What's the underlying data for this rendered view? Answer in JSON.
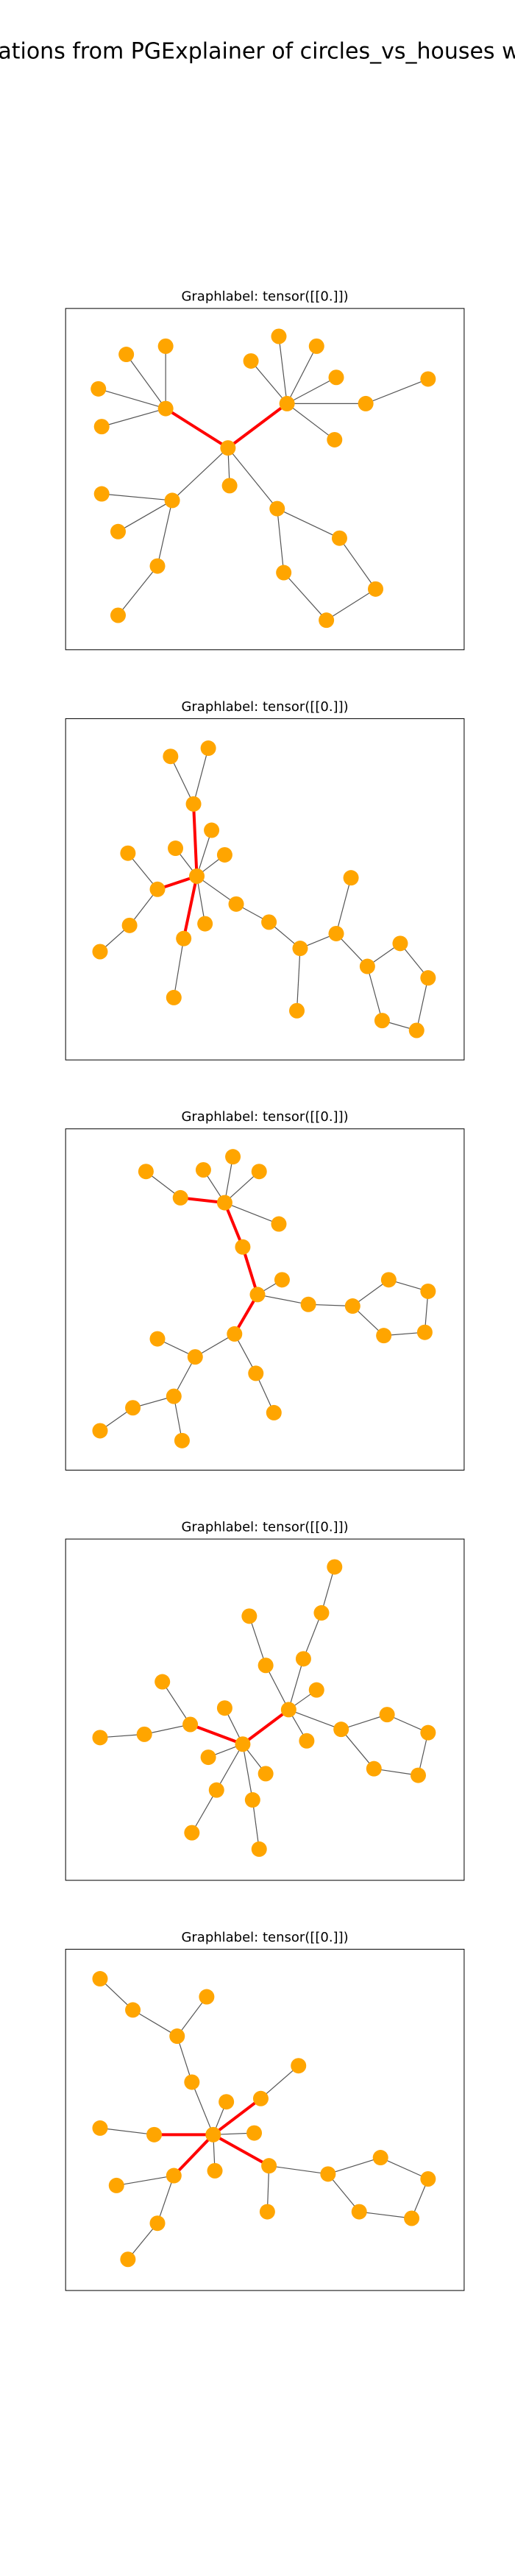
{
  "title": "izations from PGExplainer of circles_vs_houses wit",
  "panels": [
    {
      "title": "Graphlabel: tensor([[0.]])"
    },
    {
      "title": "Graphlabel: tensor([[0.]])"
    },
    {
      "title": "Graphlabel: tensor([[0.]])"
    },
    {
      "title": "Graphlabel: tensor([[0.]])"
    },
    {
      "title": "Graphlabel: tensor([[0.]])"
    }
  ]
}
